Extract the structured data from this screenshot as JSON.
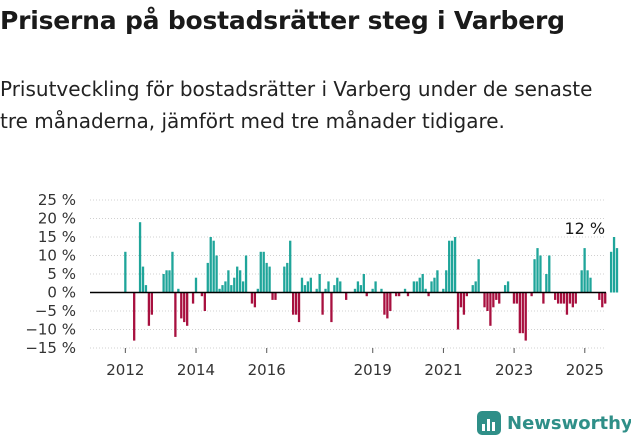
{
  "header": {
    "title": "Priserna på bostadsrätter steg i Varberg",
    "subtitle": "Prisutveckling för bostadsrätter i Varberg under de senaste tre månaderna, jämfört med tre månader tidigare."
  },
  "brand": {
    "name": "Newsworthy",
    "icon": "newsworthy-logo-icon",
    "color": "#2f8f88"
  },
  "chart_data": {
    "type": "bar",
    "colors": {
      "positive": "#1fa59a",
      "negative": "#a8103f",
      "zero_line": "#000000"
    },
    "y_ticks": [
      "25 %",
      "20 %",
      "15 %",
      "10 %",
      "5 %",
      "0 %",
      "−5 %",
      "−10 %",
      "−15 %"
    ],
    "y_tick_values": [
      25,
      20,
      15,
      10,
      5,
      0,
      -5,
      -10,
      -15
    ],
    "ylim": [
      -15,
      25
    ],
    "xlim": [
      2011.0,
      2025.6
    ],
    "x_ticks": [
      "2012",
      "2014",
      "2016",
      "2019",
      "2021",
      "2023",
      "2025"
    ],
    "x_tick_values": [
      2012,
      2014,
      2016,
      2019,
      2021,
      2023,
      2025
    ],
    "grid": "horizontal",
    "annotation": {
      "text": "12 %",
      "x": 2025.0,
      "y": 12
    },
    "x_start": 2012.0,
    "x_step": 0.0833,
    "values": [
      11,
      0,
      0,
      -13,
      0,
      19,
      7,
      2,
      -9,
      -6,
      0,
      0,
      0,
      5,
      6,
      6,
      11,
      -12,
      1,
      -7,
      -8,
      -9,
      0,
      -3,
      4,
      0,
      -1,
      -5,
      8,
      15,
      14,
      10,
      1,
      2,
      3,
      6,
      2,
      4,
      7,
      6,
      3,
      10,
      0,
      -3,
      -4,
      1,
      11,
      11,
      8,
      7,
      -2,
      -2,
      0,
      0,
      7,
      8,
      14,
      -6,
      -6,
      -8,
      4,
      2,
      3,
      4,
      0,
      1,
      5,
      -6,
      1,
      3,
      -8,
      2,
      4,
      3,
      0,
      -2,
      0,
      0,
      1,
      3,
      2,
      5,
      -1,
      0,
      1,
      3,
      0,
      1,
      -6,
      -7,
      -5,
      0,
      -1,
      -1,
      0,
      1,
      -1,
      0,
      3,
      3,
      4,
      5,
      1,
      -1,
      3,
      4,
      6,
      0,
      1,
      6,
      14,
      14,
      15,
      -10,
      -4,
      -6,
      -1,
      0,
      2,
      3,
      9,
      0,
      -4,
      -5,
      -9,
      -4,
      -2,
      -3,
      0,
      2,
      3,
      0,
      -3,
      -3,
      -11,
      -11,
      -13,
      0,
      -1,
      9,
      12,
      10,
      -3,
      5,
      10,
      0,
      -2,
      -3,
      -3,
      -3,
      -6,
      -3,
      -4,
      -3,
      0,
      6,
      12,
      6,
      4,
      0,
      0,
      -2,
      -4,
      -3,
      0,
      11,
      15,
      12
    ]
  }
}
